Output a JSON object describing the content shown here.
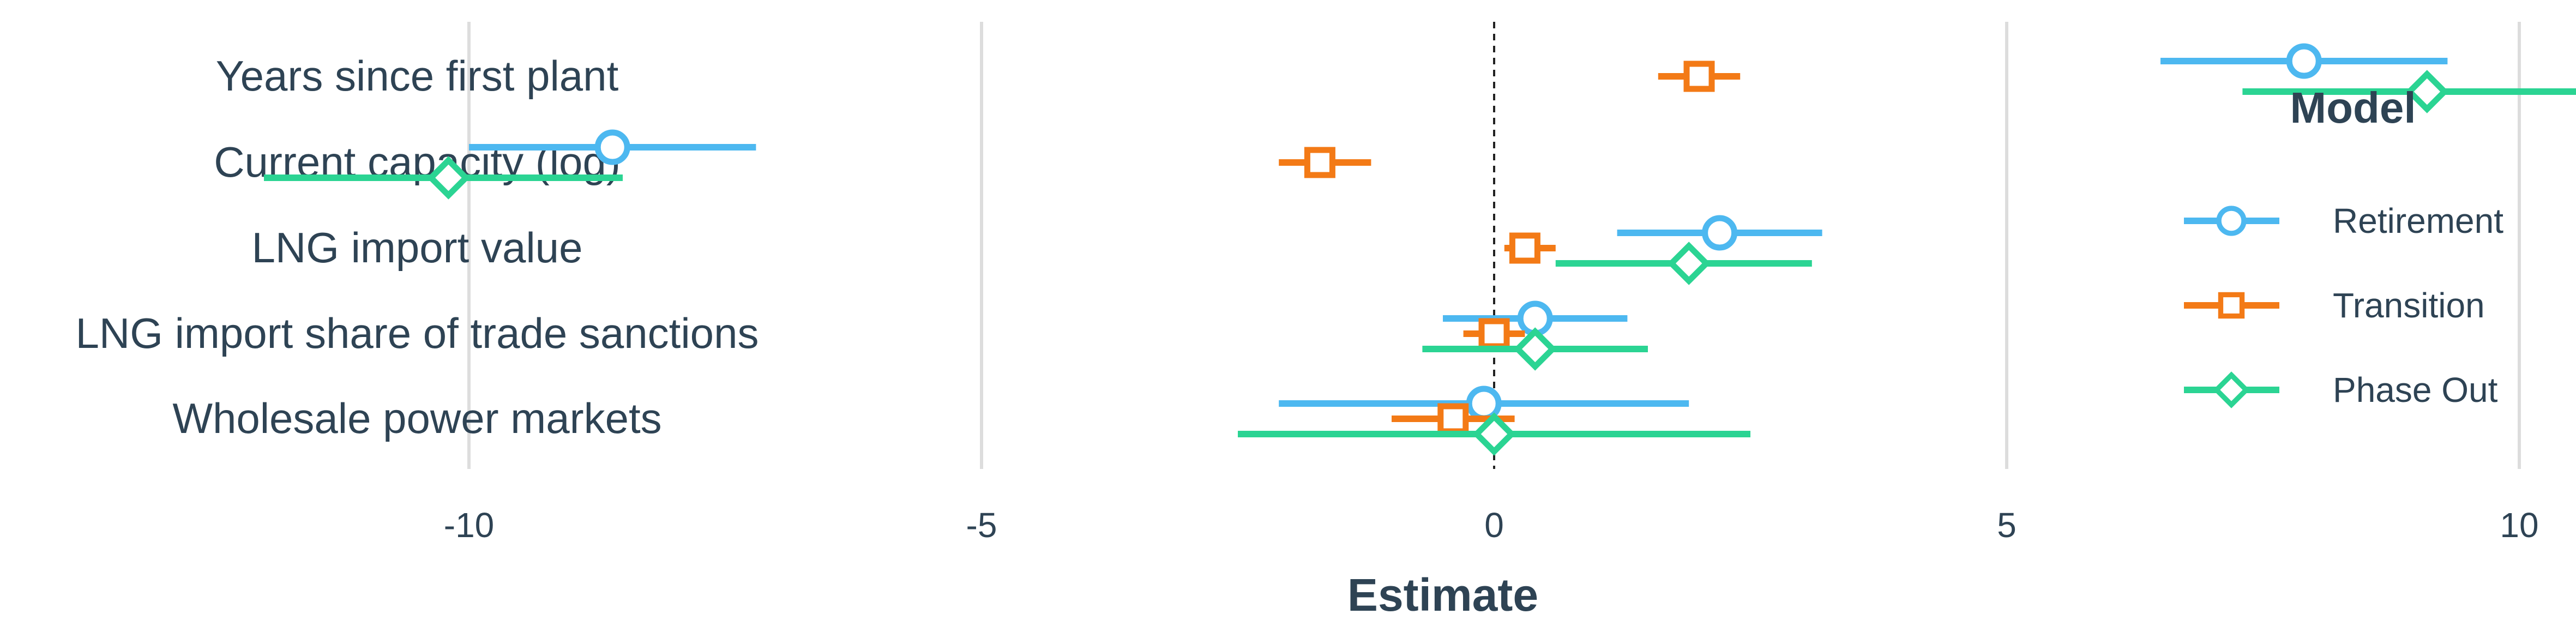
{
  "chart_data": {
    "type": "coefficient-plot",
    "xlabel": "Estimate",
    "xlim": [
      -13,
      14
    ],
    "x_ticks": [
      -10,
      -5,
      0,
      5,
      10
    ],
    "x_tick_labels": [
      "-10",
      "-5",
      "0",
      "5",
      "10"
    ],
    "reference_line": 0,
    "grid": "vertical major",
    "legend": {
      "title": "Model",
      "position": "right"
    },
    "terms": [
      "Years since first plant",
      "Current capacity (log)",
      "LNG import value",
      "LNG import share of trade sanctions",
      "Wholesale power markets"
    ],
    "series": [
      {
        "name": "Retirement",
        "color": "#4db8f0",
        "marker": "circle",
        "points": [
          {
            "estimate": 7.9,
            "low": 6.5,
            "high": 9.3
          },
          {
            "estimate": -8.6,
            "low": -10.0,
            "high": -7.2
          },
          {
            "estimate": 2.2,
            "low": 1.2,
            "high": 3.2
          },
          {
            "estimate": 0.4,
            "low": -0.5,
            "high": 1.3
          },
          {
            "estimate": -0.1,
            "low": -2.1,
            "high": 1.9
          }
        ]
      },
      {
        "name": "Transition",
        "color": "#f37a16",
        "marker": "square",
        "points": [
          {
            "estimate": 2.0,
            "low": 1.6,
            "high": 2.4
          },
          {
            "estimate": -1.7,
            "low": -2.1,
            "high": -1.2
          },
          {
            "estimate": 0.3,
            "low": 0.1,
            "high": 0.6
          },
          {
            "estimate": 0.0,
            "low": -0.3,
            "high": 0.3
          },
          {
            "estimate": -0.4,
            "low": -1.0,
            "high": 0.2
          }
        ]
      },
      {
        "name": "Phase Out",
        "color": "#2bd493",
        "marker": "diamond",
        "points": [
          {
            "estimate": 9.1,
            "low": 7.3,
            "high": 10.9
          },
          {
            "estimate": -10.2,
            "low": -12.0,
            "high": -8.5
          },
          {
            "estimate": 1.9,
            "low": 0.6,
            "high": 3.1
          },
          {
            "estimate": 0.4,
            "low": -0.7,
            "high": 1.5
          },
          {
            "estimate": 0.0,
            "low": -2.5,
            "high": 2.5
          }
        ]
      }
    ]
  }
}
